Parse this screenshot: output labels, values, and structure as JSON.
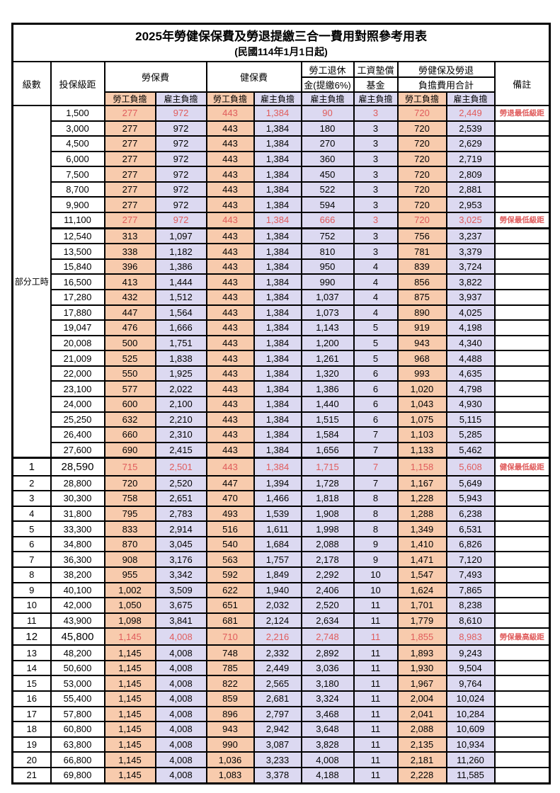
{
  "title": "2025年勞健保保費及勞退提繳三合一費用對照參考用表",
  "subtitle": "(民國114年1月1日起)",
  "colors": {
    "employee_bg": "#F8CBAD",
    "employer_bg": "#DCD9F1",
    "highlight_text": "#E05C5C",
    "grid": "#000000"
  },
  "header": {
    "level": "級數",
    "bracket": "投保級距",
    "labor_ins": "勞保費",
    "health_ins": "健保費",
    "pension_line1": "勞工退休",
    "pension_line2": "金(提繳6%)",
    "fund_line1": "工資墊償",
    "fund_line2": "基金",
    "total_line1": "勞健保及勞退",
    "total_line2": "負擔費用合計",
    "remark": "備註",
    "employee": "勞工負擔",
    "employer": "雇主負擔"
  },
  "table": {
    "part_time_group": {
      "label": "部分工時",
      "rows": 23
    },
    "rows": [
      {
        "level": "",
        "bracket": "1,500",
        "values": [
          "277",
          "972",
          "443",
          "1,384",
          "90",
          "3",
          "720",
          "2,449"
        ],
        "remark": "勞退最低級距",
        "highlight": true,
        "big": false
      },
      {
        "level": "",
        "bracket": "3,000",
        "values": [
          "277",
          "972",
          "443",
          "1,384",
          "180",
          "3",
          "720",
          "2,539"
        ],
        "remark": "",
        "highlight": false,
        "big": false
      },
      {
        "level": "",
        "bracket": "4,500",
        "values": [
          "277",
          "972",
          "443",
          "1,384",
          "270",
          "3",
          "720",
          "2,629"
        ],
        "remark": "",
        "highlight": false,
        "big": false
      },
      {
        "level": "",
        "bracket": "6,000",
        "values": [
          "277",
          "972",
          "443",
          "1,384",
          "360",
          "3",
          "720",
          "2,719"
        ],
        "remark": "",
        "highlight": false,
        "big": false
      },
      {
        "level": "",
        "bracket": "7,500",
        "values": [
          "277",
          "972",
          "443",
          "1,384",
          "450",
          "3",
          "720",
          "2,809"
        ],
        "remark": "",
        "highlight": false,
        "big": false
      },
      {
        "level": "",
        "bracket": "8,700",
        "values": [
          "277",
          "972",
          "443",
          "1,384",
          "522",
          "3",
          "720",
          "2,881"
        ],
        "remark": "",
        "highlight": false,
        "big": false
      },
      {
        "level": "",
        "bracket": "9,900",
        "values": [
          "277",
          "972",
          "443",
          "1,384",
          "594",
          "3",
          "720",
          "2,953"
        ],
        "remark": "",
        "highlight": false,
        "big": false
      },
      {
        "level": "",
        "bracket": "11,100",
        "values": [
          "277",
          "972",
          "443",
          "1,384",
          "666",
          "3",
          "720",
          "3,025"
        ],
        "remark": "勞保最低級距",
        "highlight": true,
        "big": false
      },
      {
        "level": "",
        "bracket": "12,540",
        "values": [
          "313",
          "1,097",
          "443",
          "1,384",
          "752",
          "3",
          "756",
          "3,237"
        ],
        "remark": "",
        "highlight": false,
        "big": false
      },
      {
        "level": "",
        "bracket": "13,500",
        "values": [
          "338",
          "1,182",
          "443",
          "1,384",
          "810",
          "3",
          "781",
          "3,379"
        ],
        "remark": "",
        "highlight": false,
        "big": false
      },
      {
        "level": "",
        "bracket": "15,840",
        "values": [
          "396",
          "1,386",
          "443",
          "1,384",
          "950",
          "4",
          "839",
          "3,724"
        ],
        "remark": "",
        "highlight": false,
        "big": false
      },
      {
        "level": "",
        "bracket": "16,500",
        "values": [
          "413",
          "1,444",
          "443",
          "1,384",
          "990",
          "4",
          "856",
          "3,822"
        ],
        "remark": "",
        "highlight": false,
        "big": false
      },
      {
        "level": "",
        "bracket": "17,280",
        "values": [
          "432",
          "1,512",
          "443",
          "1,384",
          "1,037",
          "4",
          "875",
          "3,937"
        ],
        "remark": "",
        "highlight": false,
        "big": false
      },
      {
        "level": "",
        "bracket": "17,880",
        "values": [
          "447",
          "1,564",
          "443",
          "1,384",
          "1,073",
          "4",
          "890",
          "4,025"
        ],
        "remark": "",
        "highlight": false,
        "big": false
      },
      {
        "level": "",
        "bracket": "19,047",
        "values": [
          "476",
          "1,666",
          "443",
          "1,384",
          "1,143",
          "5",
          "919",
          "4,198"
        ],
        "remark": "",
        "highlight": false,
        "big": false
      },
      {
        "level": "",
        "bracket": "20,008",
        "values": [
          "500",
          "1,751",
          "443",
          "1,384",
          "1,200",
          "5",
          "943",
          "4,340"
        ],
        "remark": "",
        "highlight": false,
        "big": false
      },
      {
        "level": "",
        "bracket": "21,009",
        "values": [
          "525",
          "1,838",
          "443",
          "1,384",
          "1,261",
          "5",
          "968",
          "4,488"
        ],
        "remark": "",
        "highlight": false,
        "big": false
      },
      {
        "level": "",
        "bracket": "22,000",
        "values": [
          "550",
          "1,925",
          "443",
          "1,384",
          "1,320",
          "6",
          "993",
          "4,635"
        ],
        "remark": "",
        "highlight": false,
        "big": false
      },
      {
        "level": "",
        "bracket": "23,100",
        "values": [
          "577",
          "2,022",
          "443",
          "1,384",
          "1,386",
          "6",
          "1,020",
          "4,798"
        ],
        "remark": "",
        "highlight": false,
        "big": false
      },
      {
        "level": "",
        "bracket": "24,000",
        "values": [
          "600",
          "2,100",
          "443",
          "1,384",
          "1,440",
          "6",
          "1,043",
          "4,930"
        ],
        "remark": "",
        "highlight": false,
        "big": false
      },
      {
        "level": "",
        "bracket": "25,250",
        "values": [
          "632",
          "2,210",
          "443",
          "1,384",
          "1,515",
          "6",
          "1,075",
          "5,115"
        ],
        "remark": "",
        "highlight": false,
        "big": false
      },
      {
        "level": "",
        "bracket": "26,400",
        "values": [
          "660",
          "2,310",
          "443",
          "1,384",
          "1,584",
          "7",
          "1,103",
          "5,285"
        ],
        "remark": "",
        "highlight": false,
        "big": false
      },
      {
        "level": "",
        "bracket": "27,600",
        "values": [
          "690",
          "2,415",
          "443",
          "1,384",
          "1,656",
          "7",
          "1,133",
          "5,462"
        ],
        "remark": "",
        "highlight": false,
        "big": false
      },
      {
        "level": "1",
        "bracket": "28,590",
        "values": [
          "715",
          "2,501",
          "443",
          "1,384",
          "1,715",
          "7",
          "1,158",
          "5,608"
        ],
        "remark": "健保最低級距",
        "highlight": true,
        "big": true
      },
      {
        "level": "2",
        "bracket": "28,800",
        "values": [
          "720",
          "2,520",
          "447",
          "1,394",
          "1,728",
          "7",
          "1,167",
          "5,649"
        ],
        "remark": "",
        "highlight": false,
        "big": false
      },
      {
        "level": "3",
        "bracket": "30,300",
        "values": [
          "758",
          "2,651",
          "470",
          "1,466",
          "1,818",
          "8",
          "1,228",
          "5,943"
        ],
        "remark": "",
        "highlight": false,
        "big": false
      },
      {
        "level": "4",
        "bracket": "31,800",
        "values": [
          "795",
          "2,783",
          "493",
          "1,539",
          "1,908",
          "8",
          "1,288",
          "6,238"
        ],
        "remark": "",
        "highlight": false,
        "big": false
      },
      {
        "level": "5",
        "bracket": "33,300",
        "values": [
          "833",
          "2,914",
          "516",
          "1,611",
          "1,998",
          "8",
          "1,349",
          "6,531"
        ],
        "remark": "",
        "highlight": false,
        "big": false
      },
      {
        "level": "6",
        "bracket": "34,800",
        "values": [
          "870",
          "3,045",
          "540",
          "1,684",
          "2,088",
          "9",
          "1,410",
          "6,826"
        ],
        "remark": "",
        "highlight": false,
        "big": false
      },
      {
        "level": "7",
        "bracket": "36,300",
        "values": [
          "908",
          "3,176",
          "563",
          "1,757",
          "2,178",
          "9",
          "1,471",
          "7,120"
        ],
        "remark": "",
        "highlight": false,
        "big": false
      },
      {
        "level": "8",
        "bracket": "38,200",
        "values": [
          "955",
          "3,342",
          "592",
          "1,849",
          "2,292",
          "10",
          "1,547",
          "7,493"
        ],
        "remark": "",
        "highlight": false,
        "big": false
      },
      {
        "level": "9",
        "bracket": "40,100",
        "values": [
          "1,002",
          "3,509",
          "622",
          "1,940",
          "2,406",
          "10",
          "1,624",
          "7,865"
        ],
        "remark": "",
        "highlight": false,
        "big": false
      },
      {
        "level": "10",
        "bracket": "42,000",
        "values": [
          "1,050",
          "3,675",
          "651",
          "2,032",
          "2,520",
          "11",
          "1,701",
          "8,238"
        ],
        "remark": "",
        "highlight": false,
        "big": false
      },
      {
        "level": "11",
        "bracket": "43,900",
        "values": [
          "1,098",
          "3,841",
          "681",
          "2,124",
          "2,634",
          "11",
          "1,779",
          "8,610"
        ],
        "remark": "",
        "highlight": false,
        "big": false
      },
      {
        "level": "12",
        "bracket": "45,800",
        "values": [
          "1,145",
          "4,008",
          "710",
          "2,216",
          "2,748",
          "11",
          "1,855",
          "8,983"
        ],
        "remark": "勞保最高級距",
        "highlight": true,
        "big": true
      },
      {
        "level": "13",
        "bracket": "48,200",
        "values": [
          "1,145",
          "4,008",
          "748",
          "2,332",
          "2,892",
          "11",
          "1,893",
          "9,243"
        ],
        "remark": "",
        "highlight": false,
        "big": false
      },
      {
        "level": "14",
        "bracket": "50,600",
        "values": [
          "1,145",
          "4,008",
          "785",
          "2,449",
          "3,036",
          "11",
          "1,930",
          "9,504"
        ],
        "remark": "",
        "highlight": false,
        "big": false
      },
      {
        "level": "15",
        "bracket": "53,000",
        "values": [
          "1,145",
          "4,008",
          "822",
          "2,565",
          "3,180",
          "11",
          "1,967",
          "9,764"
        ],
        "remark": "",
        "highlight": false,
        "big": false
      },
      {
        "level": "16",
        "bracket": "55,400",
        "values": [
          "1,145",
          "4,008",
          "859",
          "2,681",
          "3,324",
          "11",
          "2,004",
          "10,024"
        ],
        "remark": "",
        "highlight": false,
        "big": false
      },
      {
        "level": "17",
        "bracket": "57,800",
        "values": [
          "1,145",
          "4,008",
          "896",
          "2,797",
          "3,468",
          "11",
          "2,041",
          "10,284"
        ],
        "remark": "",
        "highlight": false,
        "big": false
      },
      {
        "level": "18",
        "bracket": "60,800",
        "values": [
          "1,145",
          "4,008",
          "943",
          "2,942",
          "3,648",
          "11",
          "2,088",
          "10,609"
        ],
        "remark": "",
        "highlight": false,
        "big": false
      },
      {
        "level": "19",
        "bracket": "63,800",
        "values": [
          "1,145",
          "4,008",
          "990",
          "3,087",
          "3,828",
          "11",
          "2,135",
          "10,934"
        ],
        "remark": "",
        "highlight": false,
        "big": false
      },
      {
        "level": "20",
        "bracket": "66,800",
        "values": [
          "1,145",
          "4,008",
          "1,036",
          "3,233",
          "4,008",
          "11",
          "2,181",
          "11,260"
        ],
        "remark": "",
        "highlight": false,
        "big": false
      },
      {
        "level": "21",
        "bracket": "69,800",
        "values": [
          "1,145",
          "4,008",
          "1,083",
          "3,378",
          "4,188",
          "11",
          "2,228",
          "11,585"
        ],
        "remark": "",
        "highlight": false,
        "big": false
      }
    ]
  }
}
